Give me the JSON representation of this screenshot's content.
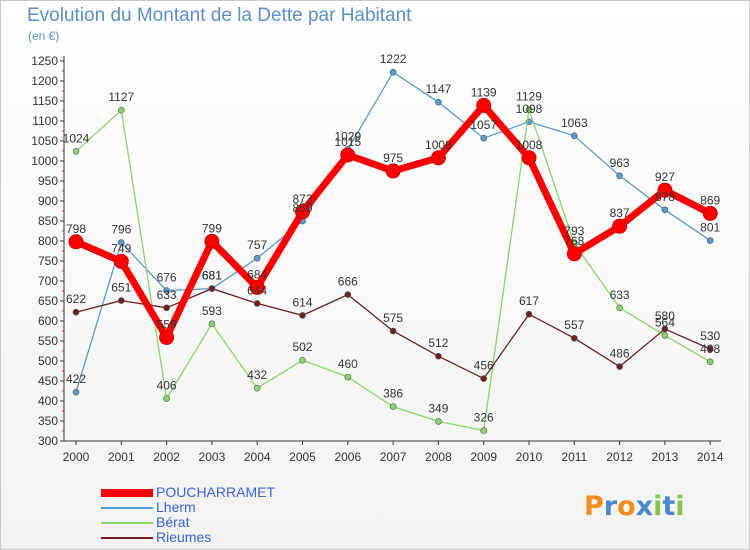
{
  "chart_data": {
    "type": "line",
    "title": "Evolution du Montant de la Dette par Habitant",
    "subtitle": "(en €)",
    "xlabel": "",
    "ylabel": "",
    "x": [
      "2000",
      "2001",
      "2002",
      "2003",
      "2004",
      "2005",
      "2006",
      "2007",
      "2008",
      "2009",
      "2010",
      "2011",
      "2012",
      "2013",
      "2014"
    ],
    "ylim": [
      300,
      1250
    ],
    "yticks": [
      300,
      350,
      400,
      450,
      500,
      550,
      600,
      650,
      700,
      750,
      800,
      850,
      900,
      950,
      1000,
      1050,
      1100,
      1150,
      1200,
      1250
    ],
    "grid": false,
    "legend": "bottom-left",
    "series": [
      {
        "name": "POUCHARRAMET",
        "color": "#ff0000",
        "values": [
          798,
          749,
          559,
          799,
          684,
          873,
          1015,
          975,
          1008,
          1139,
          1008,
          768,
          837,
          927,
          869
        ],
        "labels": [
          "798",
          "749",
          "559",
          "799",
          "684",
          "873",
          "1015",
          "975",
          "1008",
          "1139",
          "1008",
          "768",
          "837",
          "927",
          "869"
        ]
      },
      {
        "name": "Lherm",
        "color": "#5599d6",
        "values": [
          422,
          796,
          676,
          681,
          757,
          850,
          1029,
          1222,
          1147,
          1057,
          1098,
          1063,
          963,
          878,
          801
        ],
        "labels": [
          "422",
          "796",
          "676",
          "681",
          "757",
          "850",
          "1029",
          "1222",
          "1147",
          "1057",
          "1098",
          "1063",
          "963",
          "878",
          "801"
        ]
      },
      {
        "name": "Bérat",
        "color": "#88d66a",
        "values": [
          1024,
          1127,
          406,
          593,
          432,
          502,
          460,
          386,
          349,
          326,
          1129,
          793,
          633,
          564,
          498
        ],
        "labels": [
          "1024",
          "1127",
          "406",
          "593",
          "432",
          "502",
          "460",
          "386",
          "349",
          "326",
          "1129",
          "793",
          "633",
          "564",
          "498"
        ]
      },
      {
        "name": "Rieumes",
        "color": "#6b1f1f",
        "values": [
          622,
          651,
          633,
          681,
          644,
          614,
          666,
          575,
          512,
          456,
          617,
          557,
          486,
          580,
          530
        ],
        "labels": [
          "622",
          "651",
          "633",
          "681",
          "644",
          "614",
          "666",
          "575",
          "512",
          "456",
          "617",
          "557",
          "486",
          "580",
          "530"
        ]
      }
    ]
  },
  "logo": {
    "letters": [
      "P",
      "r",
      "o",
      "x",
      "i",
      "t",
      "i"
    ],
    "colors": [
      "#f28a1c",
      "#4a88cc",
      "#f28a1c",
      "#4a88cc",
      "#8bc34a",
      "#4a88cc",
      "#8bc34a"
    ]
  }
}
